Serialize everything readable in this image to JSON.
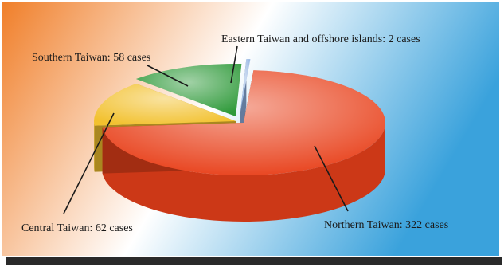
{
  "chart_data": {
    "type": "pie",
    "style": "3d-exploded",
    "title": "",
    "slices": [
      {
        "label": "Northern Taiwan: 322 cases",
        "name": "Northern Taiwan",
        "value": 322,
        "color": "#e8401a"
      },
      {
        "label": "Central Taiwan: 62 cases",
        "name": "Central Taiwan",
        "value": 62,
        "color": "#f2c12e"
      },
      {
        "label": "Southern Taiwan: 58 cases",
        "name": "Southern Taiwan",
        "value": 58,
        "color": "#2f9a3a"
      },
      {
        "label": "Eastern Taiwan and offshore islands: 2 cases",
        "name": "Eastern Taiwan and offshore islands",
        "value": 2,
        "color": "#8fb0e0"
      }
    ],
    "background": {
      "left": "#f07f2a",
      "center": "#ffffff",
      "right": "#3aa2dc"
    }
  }
}
